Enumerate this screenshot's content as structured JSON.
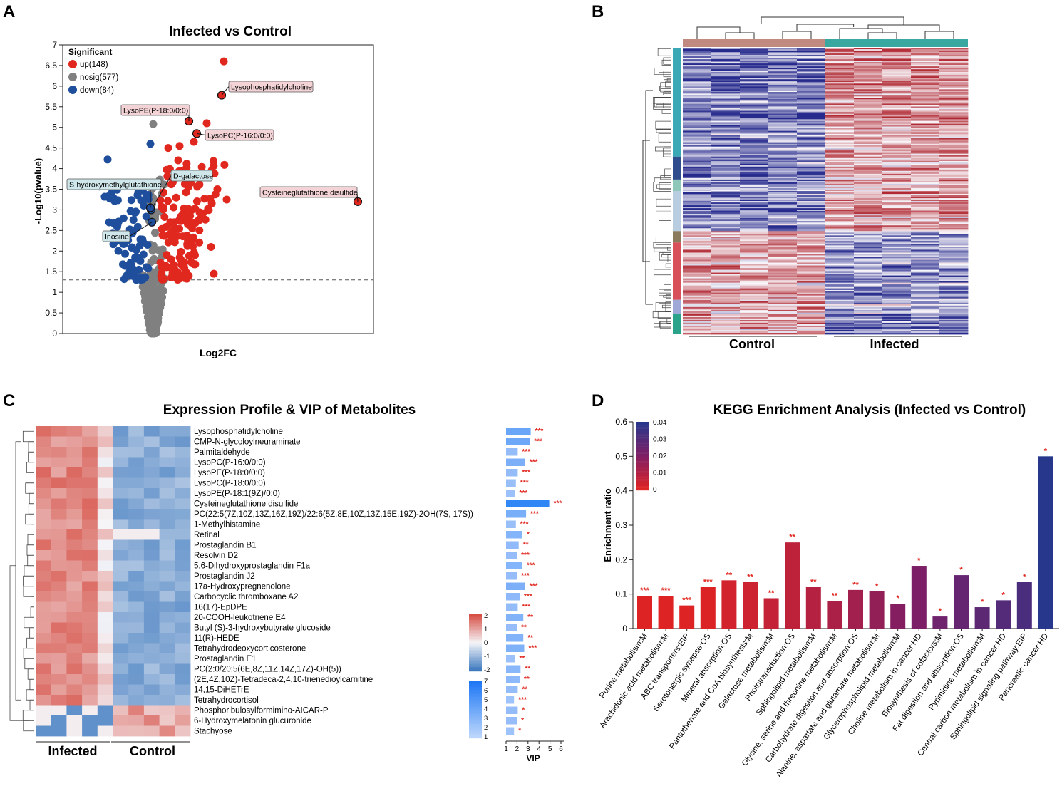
{
  "panel_letters": {
    "a": "A",
    "b": "B",
    "c": "C",
    "d": "D"
  },
  "chart_data": [
    {
      "id": "volcano",
      "type": "scatter",
      "title": "Infected vs Control",
      "xlabel": "Log2FC",
      "ylabel": "-Log10(pvalue)",
      "ylim": [
        0,
        7
      ],
      "yticks": [
        "0",
        "0.5",
        "1",
        "1.5",
        "2",
        "2.5",
        "3",
        "3.5",
        "4",
        "4.5",
        "5",
        "5.5",
        "6",
        "6.5",
        "7"
      ],
      "threshold_y": 1.3,
      "legend_title": "Significant",
      "legend": [
        {
          "label": "up(148)",
          "color": "#e0281f"
        },
        {
          "label": "nosig(577)",
          "color": "#808080"
        },
        {
          "label": "down(84)",
          "color": "#1f4e9c"
        }
      ],
      "annotations": [
        {
          "label": "Lysophosphatidylcholine",
          "y": 5.78,
          "kind": "up"
        },
        {
          "label": "LysoPE(P-18:0/0:0)",
          "y": 5.15,
          "kind": "up"
        },
        {
          "label": "LysoPC(P-16:0/0:0)",
          "y": 4.85,
          "kind": "up"
        },
        {
          "label": "Cysteineglutathione disulfide",
          "y": 3.2,
          "kind": "up"
        },
        {
          "label": "D-galactose",
          "y": 3.0,
          "kind": "down"
        },
        {
          "label": "S-hydroxymethylglutathione",
          "y": 3.05,
          "kind": "down"
        },
        {
          "label": "Inosine",
          "y": 2.7,
          "kind": "down"
        }
      ]
    },
    {
      "id": "heatmap",
      "type": "heatmap",
      "column_groups": [
        "Control",
        "Infected"
      ],
      "group_colors": [
        "#c08a80",
        "#3aa8a0"
      ],
      "samples_per_group": 5
    },
    {
      "id": "vip",
      "type": "heatmap",
      "title": "Expression Profile & VIP of Metabolites",
      "groups": [
        "Infected",
        "Control"
      ],
      "rows": [
        {
          "name": "Lysophosphatidylcholine",
          "vip": 3.2,
          "sig": "***",
          "pattern": "up"
        },
        {
          "name": "CMP-N-glycoloylneuraminate",
          "vip": 3.1,
          "sig": "***",
          "pattern": "up"
        },
        {
          "name": "Palmitaldehyde",
          "vip": 1.8,
          "sig": "***",
          "pattern": "up"
        },
        {
          "name": "LysoPC(P-16:0/0:0)",
          "vip": 2.6,
          "sig": "***",
          "pattern": "up"
        },
        {
          "name": "LysoPE(P-18:0/0:0)",
          "vip": 1.8,
          "sig": "***",
          "pattern": "up"
        },
        {
          "name": "LysoPC(P-18:0/0:0)",
          "vip": 1.6,
          "sig": "***",
          "pattern": "up"
        },
        {
          "name": "LysoPE(P-18:1(9Z)/0:0)",
          "vip": 1.5,
          "sig": "***",
          "pattern": "up"
        },
        {
          "name": "Cysteineglutathione disulfide",
          "vip": 5.2,
          "sig": "***",
          "pattern": "up"
        },
        {
          "name": "PC(22:5(7Z,10Z,13Z,16Z,19Z)/22:6(5Z,8E,10Z,13Z,15E,19Z)-2OH(7S, 17S))",
          "vip": 2.7,
          "sig": "***",
          "pattern": "up"
        },
        {
          "name": "1-Methylhistamine",
          "vip": 1.6,
          "sig": "***",
          "pattern": "up"
        },
        {
          "name": "Retinal",
          "vip": 2.3,
          "sig": "*",
          "pattern": "up"
        },
        {
          "name": "Prostaglandin B1",
          "vip": 1.9,
          "sig": "**",
          "pattern": "up"
        },
        {
          "name": "Resolvin D2",
          "vip": 1.7,
          "sig": "***",
          "pattern": "up"
        },
        {
          "name": "5,6-Dihydroxyprostaglandin F1a",
          "vip": 2.3,
          "sig": "***",
          "pattern": "up"
        },
        {
          "name": "Prostaglandin J2",
          "vip": 1.7,
          "sig": "***",
          "pattern": "up"
        },
        {
          "name": "17a-Hydroxypregnenolone",
          "vip": 2.6,
          "sig": "***",
          "pattern": "up"
        },
        {
          "name": "Carbocyclic thromboxane A2",
          "vip": 2.0,
          "sig": "***",
          "pattern": "up"
        },
        {
          "name": "16(17)-EpDPE",
          "vip": 1.8,
          "sig": "***",
          "pattern": "up"
        },
        {
          "name": "20-COOH-leukotriene E4",
          "vip": 2.4,
          "sig": "**",
          "pattern": "up"
        },
        {
          "name": "Butyl (S)-3-hydroxybutyrate glucoside",
          "vip": 1.7,
          "sig": "**",
          "pattern": "up"
        },
        {
          "name": "11(R)-HEDE",
          "vip": 2.4,
          "sig": "**",
          "pattern": "up"
        },
        {
          "name": "Tetrahydrodeoxycorticosterone",
          "vip": 2.5,
          "sig": "***",
          "pattern": "up"
        },
        {
          "name": "Prostaglandin E1",
          "vip": 1.5,
          "sig": "**",
          "pattern": "up"
        },
        {
          "name": "PC(2:0/20:5(6E,8Z,11Z,14Z,17Z)-OH(5))",
          "vip": 2.1,
          "sig": "**",
          "pattern": "up"
        },
        {
          "name": "(2E,4Z,10Z)-Tetradeca-2,4,10-trienedioylcarnitine",
          "vip": 2.0,
          "sig": "**",
          "pattern": "up"
        },
        {
          "name": "14,15-DiHETrE",
          "vip": 1.8,
          "sig": "**",
          "pattern": "up"
        },
        {
          "name": "Tetrahydrocortisol",
          "vip": 1.4,
          "sig": "***",
          "pattern": "up"
        },
        {
          "name": "Phosphoribulosylformimino-AICAR-P",
          "vip": 1.8,
          "sig": "*",
          "pattern": "down"
        },
        {
          "name": "6-Hydroxymelatonin glucuronide",
          "vip": 1.7,
          "sig": "*",
          "pattern": "down"
        },
        {
          "name": "Stachyose",
          "vip": 1.4,
          "sig": "*",
          "pattern": "down"
        }
      ],
      "vip_axis": {
        "label": "VIP",
        "ticks": [
          "1",
          "2",
          "3",
          "4",
          "5",
          "6"
        ],
        "range": [
          1,
          6
        ]
      },
      "colorbar_expr": {
        "ticks": [
          "2",
          "1",
          "0",
          "-1",
          "-2"
        ]
      },
      "colorbar_vip": {
        "ticks": [
          "7",
          "6",
          "5",
          "4",
          "3",
          "2",
          "1"
        ]
      }
    },
    {
      "id": "kegg",
      "type": "bar",
      "title": "KEGG Enrichment Analysis (Infected vs Control)",
      "ylabel": "Enrichment ratio",
      "ylim": [
        0,
        0.6
      ],
      "yticks": [
        "0",
        "0.1",
        "0.2",
        "0.3",
        "0.4",
        "0.5",
        "0.6"
      ],
      "categories": [
        "Purine metabolism:M",
        "Arachidonic acid metabolism:M",
        "ABC transporters:EIP",
        "Serotonergic synapse:OS",
        "Mineral absorption:OS",
        "Pantothenate and CoA biosynthesis:M",
        "Galactose metabolism:M",
        "Phototransduction:OS",
        "Sphingolipid metabolism:M",
        "Glycine, serine and threonine metabolism:M",
        "Carbohydrate digestion and absorption:OS",
        "Alanine, aspartate and glutamate metabolism:M",
        "Glycerophospholipid metabolism:M",
        "Choline metabolism in cancer:HD",
        "Biosynthesis of cofactors:M",
        "Fat digestion and absorption:OS",
        "Pyrimidine metabolism:M",
        "Central carbon metabolism in cancer:HD",
        "Sphingolipid signaling pathway:EIP",
        "Pancreatic cancer:HD"
      ],
      "values": [
        0.095,
        0.095,
        0.067,
        0.12,
        0.14,
        0.135,
        0.088,
        0.25,
        0.12,
        0.08,
        0.112,
        0.108,
        0.072,
        0.182,
        0.035,
        0.155,
        0.062,
        0.082,
        0.135,
        0.5
      ],
      "pvalues": [
        0.0005,
        0.0005,
        0.0005,
        0.001,
        0.003,
        0.004,
        0.006,
        0.007,
        0.009,
        0.011,
        0.013,
        0.016,
        0.019,
        0.021,
        0.024,
        0.026,
        0.028,
        0.03,
        0.032,
        0.04
      ],
      "sig": [
        "***",
        "***",
        "***",
        "***",
        "**",
        "**",
        "**",
        "**",
        "**",
        "**",
        "**",
        "*",
        "*",
        "*",
        "*",
        "*",
        "*",
        "*",
        "*",
        "*"
      ],
      "colorbar_ticks": [
        "0.04",
        "0.03",
        "0.02",
        "0.01",
        "0"
      ]
    }
  ]
}
